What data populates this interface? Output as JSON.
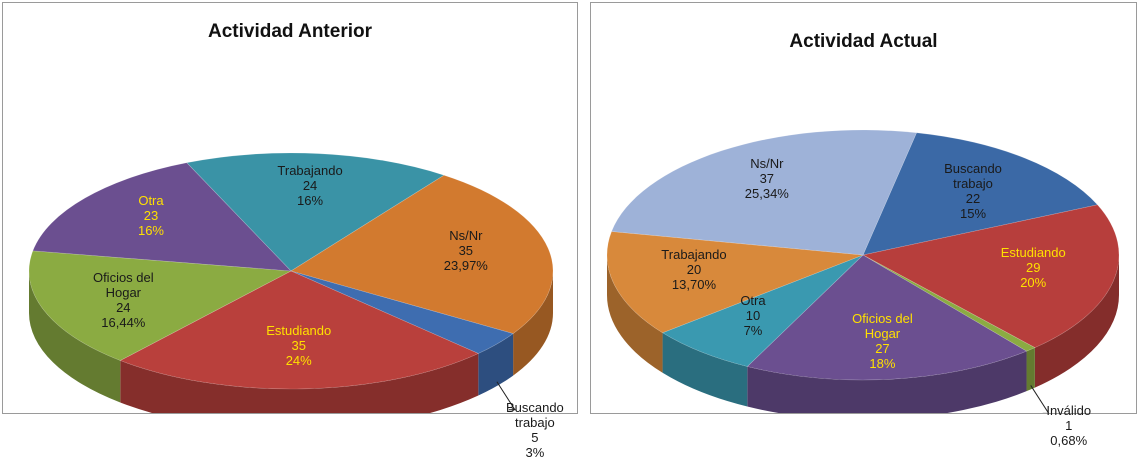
{
  "chart_data": [
    {
      "type": "pie",
      "title": "Actividad Anterior",
      "categories": [
        "Trabajando",
        "Ns/Nr",
        "Buscando trabajo",
        "Estudiando",
        "Oficios del Hogar",
        "Otra"
      ],
      "values": [
        24,
        35,
        5,
        35,
        24,
        23
      ],
      "percent_labels": [
        "16%",
        "23,97%",
        "3%",
        "24%",
        "16,44%",
        "16%"
      ],
      "colors": [
        "#3a93a6",
        "#d27a2f",
        "#3e6db0",
        "#b9403c",
        "#8bab42",
        "#6b4f90"
      ],
      "label_colors": [
        "#1a1a1a",
        "#1a1a1a",
        "#1a1a1a",
        "#ffe000",
        "#1a1a1a",
        "#ffe000"
      ]
    },
    {
      "type": "pie",
      "title": "Actividad Actual",
      "categories": [
        "Buscando trabajo",
        "Estudiando",
        "Inválido",
        "Oficios del Hogar",
        "Otra",
        "Trabajando",
        "Ns/Nr"
      ],
      "values": [
        22,
        29,
        1,
        27,
        10,
        20,
        37
      ],
      "percent_labels": [
        "15%",
        "20%",
        "0,68%",
        "18%",
        "7%",
        "13,70%",
        "25,34%"
      ],
      "colors": [
        "#3b69a6",
        "#b73e3c",
        "#8bab42",
        "#6b4f90",
        "#3a99b0",
        "#d8893b",
        "#9eb2d8"
      ],
      "label_colors": [
        "#1a1a1a",
        "#ffe000",
        "#1a1a1a",
        "#ffe000",
        "#1a1a1a",
        "#1a1a1a",
        "#1a1a1a"
      ]
    }
  ]
}
